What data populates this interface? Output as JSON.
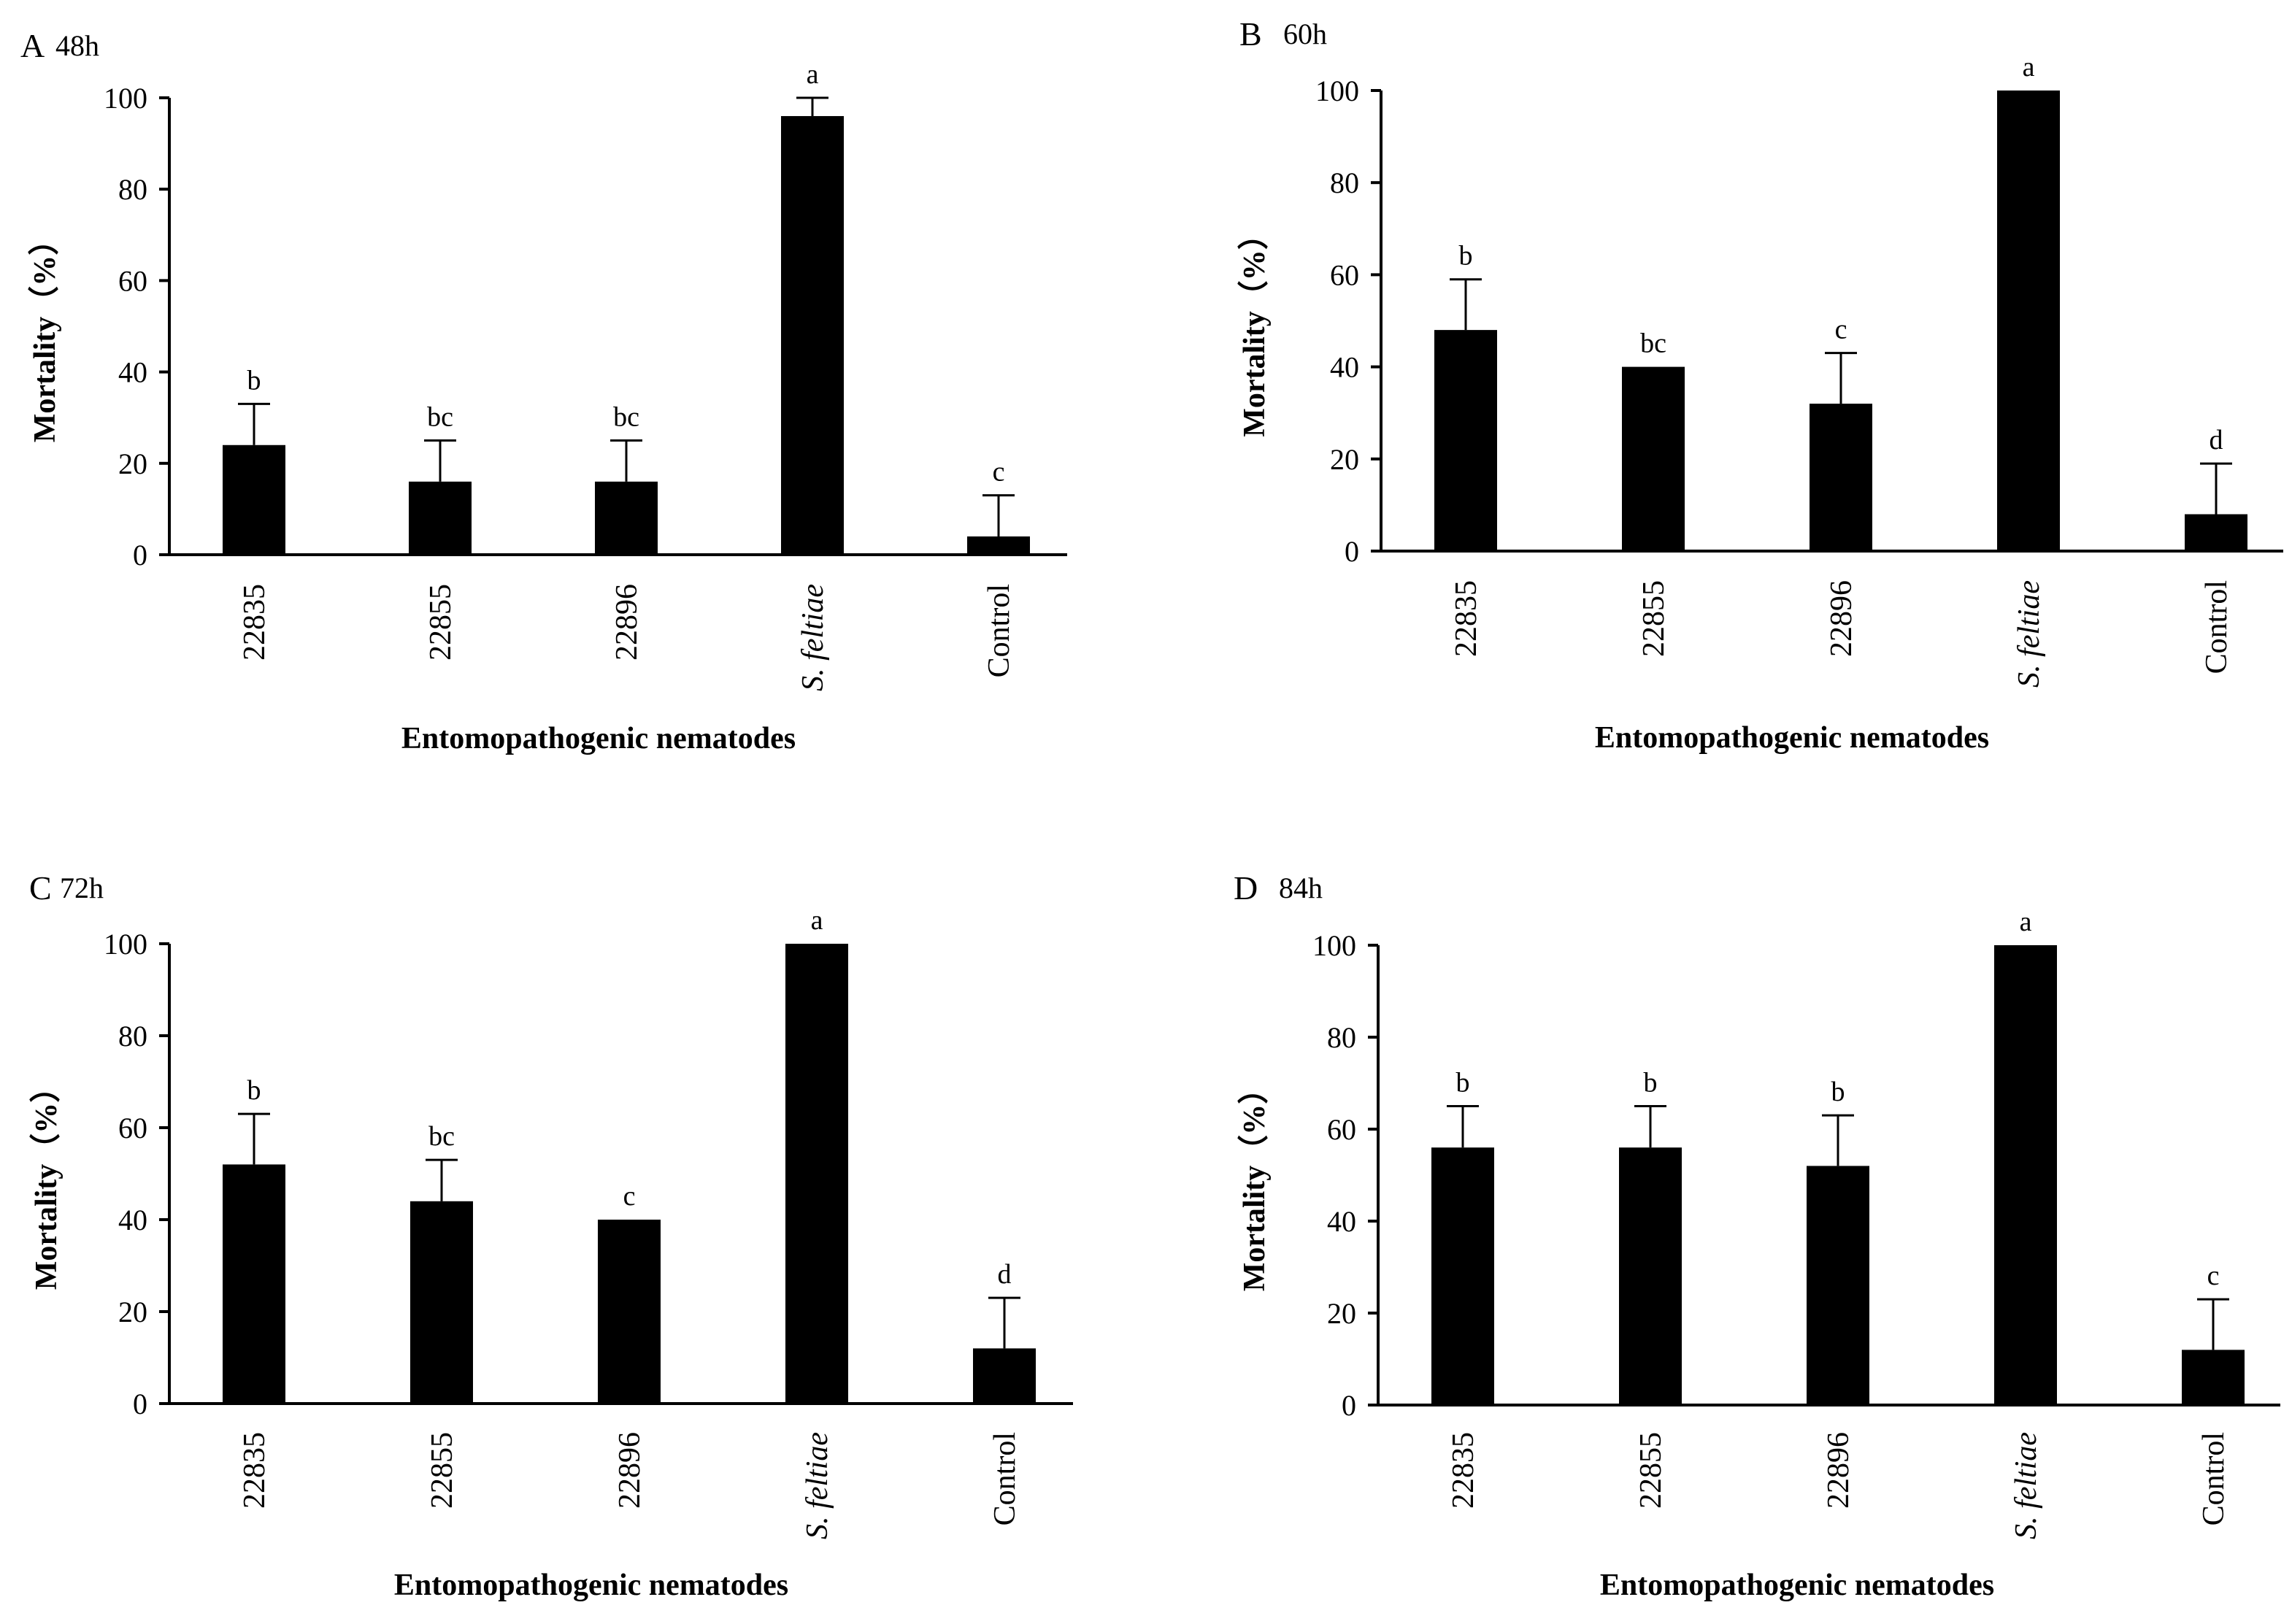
{
  "chart_data": [
    {
      "type": "bar",
      "panel_letter": "A",
      "time_label": "48h",
      "categories": [
        "22835",
        "22855",
        "22896",
        "S. feltiae",
        "Control"
      ],
      "values": [
        24,
        16,
        16,
        96,
        4
      ],
      "errors": [
        9,
        9,
        9,
        4,
        9
      ],
      "letters": [
        "b",
        "bc",
        "bc",
        "a",
        "c"
      ],
      "xlabel": "Entomopathogenic nematodes",
      "ylabel": "Mortality（%）",
      "ylim": [
        0,
        100
      ],
      "yticks": [
        0,
        20,
        40,
        60,
        80,
        100
      ],
      "grid": false,
      "legend": "none"
    },
    {
      "type": "bar",
      "panel_letter": "B",
      "time_label": "60h",
      "categories": [
        "22835",
        "22855",
        "22896",
        "S. feltiae",
        "Control"
      ],
      "values": [
        48,
        40,
        32,
        100,
        8
      ],
      "errors": [
        11,
        0,
        11,
        0,
        11
      ],
      "letters": [
        "b",
        "bc",
        "c",
        "a",
        "d"
      ],
      "xlabel": "Entomopathogenic nematodes",
      "ylabel": "Mortality（%）",
      "ylim": [
        0,
        100
      ],
      "yticks": [
        0,
        20,
        40,
        60,
        80,
        100
      ],
      "grid": false,
      "legend": "none"
    },
    {
      "type": "bar",
      "panel_letter": "C",
      "time_label": "72h",
      "categories": [
        "22835",
        "22855",
        "22896",
        "S. feltiae",
        "Control"
      ],
      "values": [
        52,
        44,
        40,
        100,
        12
      ],
      "errors": [
        11,
        9,
        0,
        0,
        11
      ],
      "letters": [
        "b",
        "bc",
        "c",
        "a",
        "d"
      ],
      "xlabel": "Entomopathogenic nematodes",
      "ylabel": "Mortality（%）",
      "ylim": [
        0,
        100
      ],
      "yticks": [
        0,
        20,
        40,
        60,
        80,
        100
      ],
      "grid": false,
      "legend": "none"
    },
    {
      "type": "bar",
      "panel_letter": "D",
      "time_label": "84h",
      "categories": [
        "22835",
        "22855",
        "22896",
        "S. feltiae",
        "Control"
      ],
      "values": [
        56,
        56,
        52,
        100,
        12
      ],
      "errors": [
        9,
        9,
        11,
        0,
        11
      ],
      "letters": [
        "b",
        "b",
        "b",
        "a",
        "c"
      ],
      "xlabel": "Entomopathogenic nematodes",
      "ylabel": "Mortality（%）",
      "ylim": [
        0,
        100
      ],
      "yticks": [
        0,
        20,
        40,
        60,
        80,
        100
      ],
      "grid": false,
      "legend": "none"
    }
  ]
}
